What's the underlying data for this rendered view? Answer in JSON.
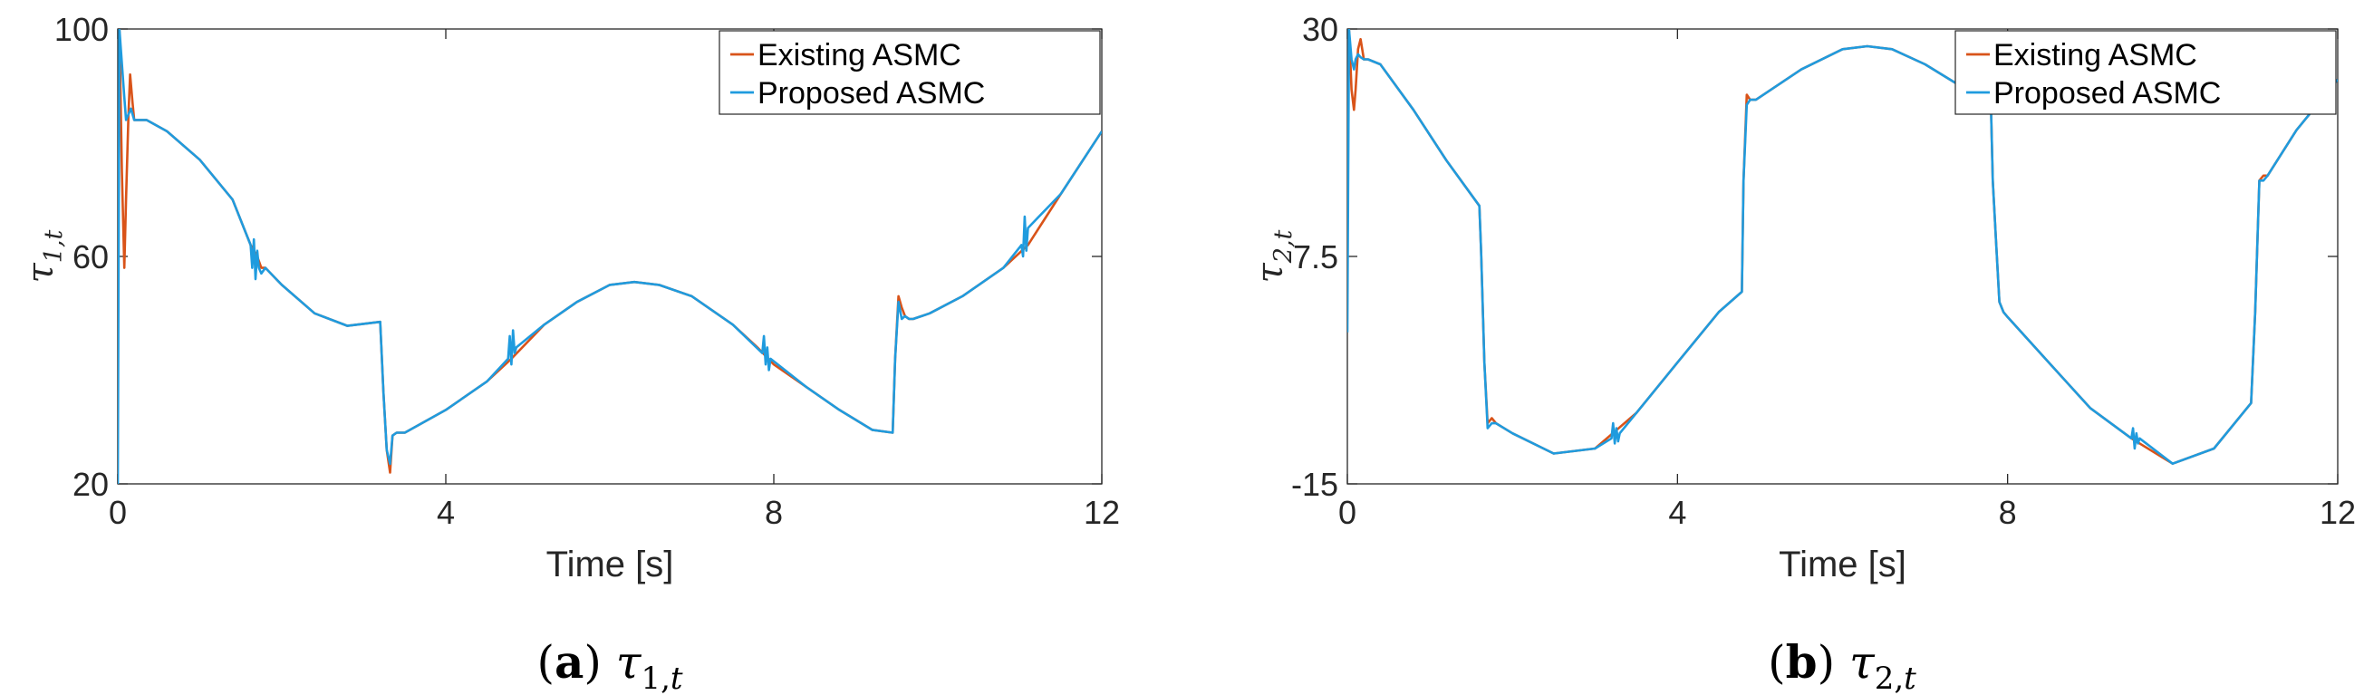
{
  "chart_data": [
    {
      "type": "line",
      "panel_letter": "a",
      "caption_symbol": "τ",
      "caption_subscript": "1,",
      "caption_subscript_italic": "t",
      "ylabel_symbol": "τ",
      "ylabel_subscript": "1,t",
      "xlabel": "Time [s]",
      "xlim": [
        0,
        12
      ],
      "ylim": [
        20,
        100
      ],
      "xticks": [
        0,
        4,
        8,
        12
      ],
      "yticks": [
        20,
        60,
        100
      ],
      "xtick_labels": [
        "0",
        "4",
        "8",
        "12"
      ],
      "ytick_labels": [
        "20",
        "60",
        "100"
      ],
      "grid": false,
      "legend_position": "top-right",
      "series": [
        {
          "name": "Existing ASMC",
          "color": "#d95319",
          "x": [
            0.02,
            0.05,
            0.08,
            0.1,
            0.13,
            0.15,
            0.18,
            0.2,
            0.23,
            0.27,
            0.35,
            0.6,
            1.0,
            1.4,
            1.62,
            1.7,
            1.75,
            1.8,
            2.0,
            2.4,
            2.8,
            3.2,
            3.24,
            3.28,
            3.32,
            3.35,
            3.4,
            3.5,
            4.0,
            4.5,
            4.8,
            5.2,
            5.6,
            6.0,
            6.3,
            6.6,
            7.0,
            7.5,
            7.8,
            8.0,
            8.4,
            8.8,
            9.2,
            9.45,
            9.48,
            9.52,
            9.56,
            9.6,
            9.65,
            9.7,
            9.9,
            10.3,
            10.8,
            11.1,
            11.5,
            12.0
          ],
          "y": [
            100,
            75,
            58,
            70,
            85,
            92,
            87,
            84,
            84,
            84,
            84,
            82,
            77,
            70,
            62,
            60,
            58,
            58,
            55,
            50,
            47.8,
            48.5,
            36,
            26,
            22,
            28.5,
            29,
            29,
            33,
            38,
            42,
            48,
            52,
            55,
            55.5,
            55,
            53,
            48,
            44,
            41,
            37,
            33,
            29.5,
            29,
            42,
            53,
            51,
            49.5,
            49,
            49,
            50,
            53,
            58,
            62,
            71,
            82
          ]
        },
        {
          "name": "Proposed ASMC",
          "color": "#1f9bde",
          "x": [
            0.0,
            0.02,
            0.04,
            0.06,
            0.08,
            0.1,
            0.13,
            0.16,
            0.2,
            0.25,
            0.35,
            0.6,
            1.0,
            1.4,
            1.62,
            1.64,
            1.66,
            1.68,
            1.7,
            1.72,
            1.75,
            1.8,
            2.0,
            2.4,
            2.8,
            3.2,
            3.24,
            3.28,
            3.32,
            3.35,
            3.4,
            3.5,
            4.0,
            4.5,
            4.76,
            4.78,
            4.8,
            4.82,
            4.84,
            4.86,
            5.2,
            5.6,
            6.0,
            6.3,
            6.6,
            7.0,
            7.5,
            7.86,
            7.88,
            7.9,
            7.92,
            7.94,
            7.96,
            8.4,
            8.8,
            9.2,
            9.45,
            9.48,
            9.52,
            9.56,
            9.6,
            9.65,
            9.7,
            9.9,
            10.3,
            10.8,
            11.02,
            11.04,
            11.06,
            11.08,
            11.1,
            11.5,
            12.0
          ],
          "y": [
            20,
            100,
            96,
            92,
            88,
            84,
            85,
            86,
            84,
            84,
            84,
            82,
            77,
            70,
            62,
            58,
            63,
            56,
            61,
            58,
            57,
            58,
            55,
            50,
            47.8,
            48.5,
            36,
            26,
            23.5,
            28.5,
            29,
            29,
            33,
            38,
            42,
            46,
            41,
            47,
            43,
            44,
            48,
            52,
            55,
            55.5,
            55,
            53,
            48,
            43,
            46,
            41,
            44,
            40,
            42,
            37,
            33,
            29.5,
            29,
            42,
            52,
            49,
            49.5,
            49,
            49,
            50,
            53,
            58,
            62,
            60,
            67,
            61,
            65,
            71,
            82
          ]
        }
      ]
    },
    {
      "type": "line",
      "panel_letter": "b",
      "caption_symbol": "τ",
      "caption_subscript": "2,",
      "caption_subscript_italic": "t",
      "ylabel_symbol": "τ",
      "ylabel_subscript": "2,t",
      "xlabel": "Time [s]",
      "xlim": [
        0,
        12
      ],
      "ylim": [
        -15,
        30
      ],
      "xticks": [
        0,
        4,
        8,
        12
      ],
      "yticks": [
        -15,
        7.5,
        30
      ],
      "xtick_labels": [
        "0",
        "4",
        "8",
        "12"
      ],
      "ytick_labels": [
        "-15",
        "7.5",
        "30"
      ],
      "grid": false,
      "legend_position": "top-right",
      "series": [
        {
          "name": "Existing ASMC",
          "color": "#d95319",
          "x": [
            0.02,
            0.05,
            0.08,
            0.1,
            0.13,
            0.16,
            0.2,
            0.25,
            0.4,
            0.8,
            1.2,
            1.6,
            1.62,
            1.66,
            1.7,
            1.75,
            1.8,
            2.0,
            2.5,
            3.0,
            3.5,
            4.0,
            4.5,
            4.78,
            4.8,
            4.84,
            4.88,
            4.95,
            5.5,
            6.0,
            6.3,
            6.6,
            7.0,
            7.5,
            7.8,
            7.82,
            7.86,
            7.9,
            7.95,
            8.0,
            8.5,
            9.0,
            9.5,
            10.0,
            10.5,
            10.95,
            11.0,
            11.05,
            11.1,
            11.15,
            11.5,
            12.0
          ],
          "y": [
            30,
            24,
            22,
            24,
            28,
            29,
            27,
            27,
            26.5,
            22,
            17,
            12.5,
            8,
            -3,
            -9,
            -8.5,
            -9,
            -10,
            -12,
            -11.5,
            -8,
            -3,
            2,
            4,
            15,
            23.5,
            23,
            23,
            26,
            28,
            28.3,
            28,
            26.5,
            24,
            22,
            15,
            9,
            3,
            2,
            1.5,
            -3,
            -7.5,
            -10.5,
            -13,
            -11.5,
            -7,
            2,
            15,
            15.5,
            15.5,
            20,
            25
          ]
        },
        {
          "name": "Proposed ASMC",
          "color": "#1f9bde",
          "x": [
            0.0,
            0.02,
            0.05,
            0.08,
            0.1,
            0.13,
            0.16,
            0.2,
            0.25,
            0.4,
            0.8,
            1.2,
            1.6,
            1.62,
            1.66,
            1.7,
            1.75,
            1.8,
            2.0,
            2.5,
            3.0,
            3.2,
            3.22,
            3.24,
            3.26,
            3.28,
            3.3,
            3.5,
            4.0,
            4.5,
            4.78,
            4.8,
            4.84,
            4.88,
            4.95,
            5.5,
            6.0,
            6.3,
            6.6,
            7.0,
            7.5,
            7.8,
            7.82,
            7.86,
            7.9,
            7.95,
            8.0,
            8.5,
            9.0,
            9.5,
            9.52,
            9.54,
            9.56,
            9.58,
            9.6,
            10.0,
            10.5,
            10.95,
            11.0,
            11.05,
            11.1,
            11.15,
            11.5,
            12.0
          ],
          "y": [
            0,
            30,
            27,
            26,
            27,
            27.5,
            27.2,
            27,
            27,
            26.5,
            22,
            17,
            12.5,
            8,
            -3,
            -9.5,
            -9,
            -9,
            -10,
            -12,
            -11.5,
            -10.5,
            -9,
            -11,
            -9.5,
            -10.8,
            -10,
            -8,
            -3,
            2,
            4,
            15,
            22.5,
            23,
            23,
            26,
            28,
            28.3,
            28,
            26.5,
            24,
            22,
            15,
            9,
            3,
            2,
            1.5,
            -3,
            -7.5,
            -10.5,
            -9.5,
            -11.5,
            -10,
            -11,
            -10.5,
            -13,
            -11.5,
            -7,
            2,
            15,
            15,
            15.5,
            20,
            25
          ]
        }
      ]
    }
  ]
}
